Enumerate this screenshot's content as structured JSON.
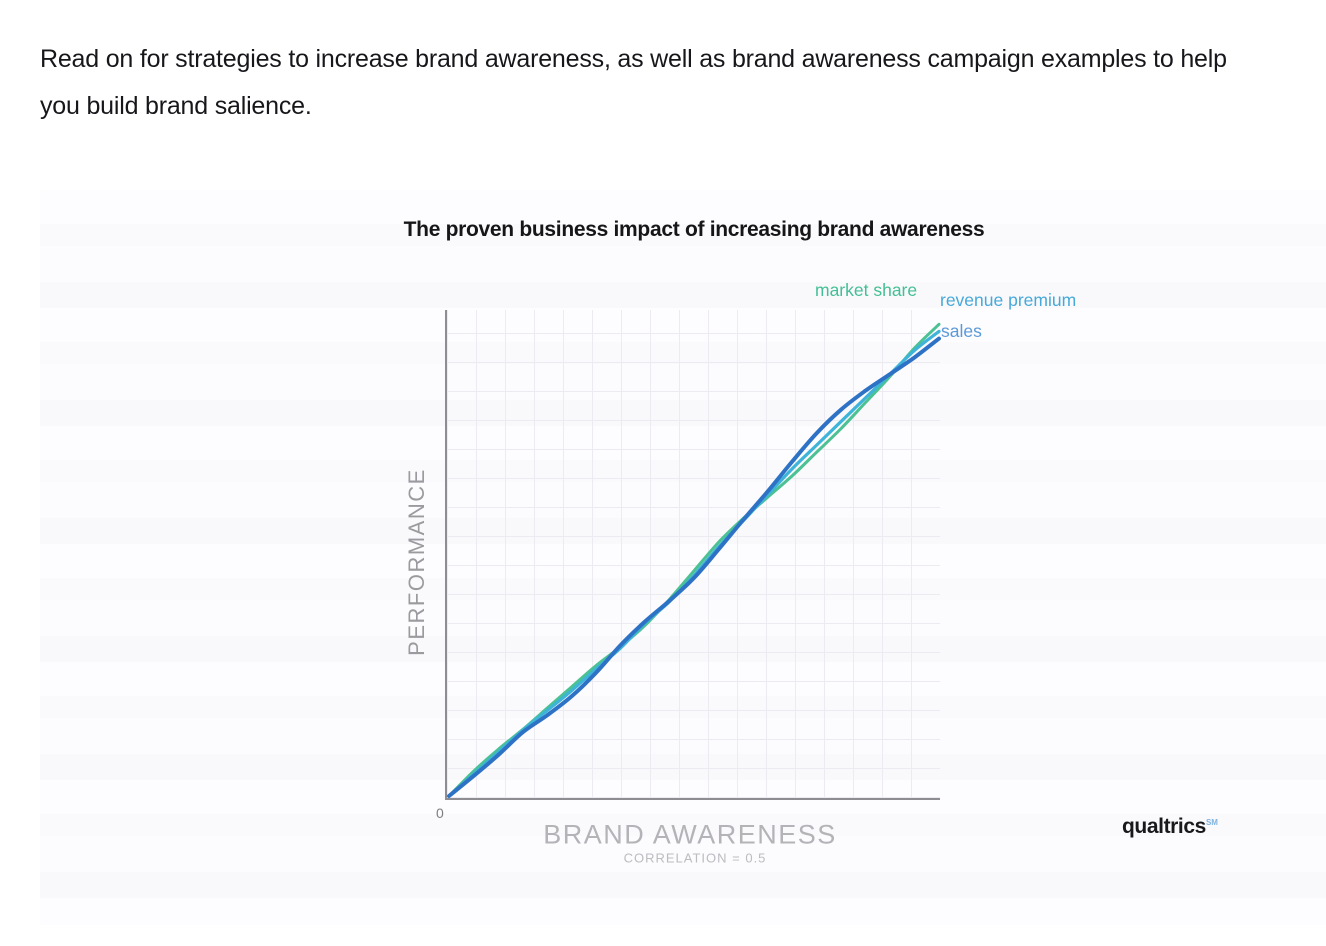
{
  "intro": {
    "text": "Read on for strategies to increase brand awareness, as well as brand awareness campaign examples to help you build brand salience."
  },
  "figure": {
    "title": "The proven business impact of increasing brand awareness",
    "y_axis_label": "PERFORMANCE",
    "x_axis_label": "BRAND AWARENESS",
    "correlation_note": "CORRELATION = 0.5",
    "origin_label": "0",
    "legend": {
      "market_share": "market share",
      "revenue_premium": "revenue premium",
      "sales": "sales"
    },
    "brand": {
      "name": "qualtrics",
      "mark": "SM"
    },
    "colors": {
      "market_share_text": "#44bf93",
      "revenue_premium_text": "#47a9d8",
      "sales_text": "#5b9ad8",
      "brand_mark": "#7fb3e0",
      "axis": "#8e8e92",
      "grid": "#ebebf1"
    }
  },
  "chart_data": {
    "type": "line",
    "title": "The proven business impact of increasing brand awareness",
    "xlabel": "BRAND AWARENESS",
    "ylabel": "PERFORMANCE",
    "annotation": "CORRELATION = 0.5",
    "origin_tick_label": "0",
    "xlim": [
      0,
      100
    ],
    "ylim": [
      0,
      100
    ],
    "grid": true,
    "legend_position": "top-right at line ends",
    "note": "Axes carry no numeric ticks except 0 at origin; values are pixel-estimated on a normalized 0-100 scale. Three near-diagonal wavy lines braid around each other from origin to top right.",
    "x": [
      0,
      5,
      10,
      15,
      20,
      25,
      30,
      35,
      40,
      45,
      50,
      55,
      60,
      65,
      70,
      75,
      80,
      85,
      90,
      95,
      100
    ],
    "series": [
      {
        "name": "market share",
        "color": "#4cc193",
        "stroke_width": 3,
        "values": [
          0,
          5.2,
          9.8,
          14,
          18.5,
          23,
          27.5,
          31.5,
          36,
          41.5,
          47.5,
          53.5,
          58.5,
          63,
          67.5,
          72.5,
          77.5,
          83,
          88.5,
          94.5,
          99.5
        ]
      },
      {
        "name": "revenue premium",
        "color": "#3db4d8",
        "stroke_width": 3.2,
        "values": [
          0,
          4.6,
          9.2,
          13.8,
          18,
          22.2,
          26.8,
          31.2,
          36.5,
          41,
          46.5,
          52.5,
          58,
          63.5,
          69,
          74,
          79,
          84,
          89,
          94,
          98
        ]
      },
      {
        "name": "sales",
        "color": "#2e72c6",
        "stroke_width": 4,
        "values": [
          0,
          4.2,
          8.6,
          13.4,
          17,
          21,
          26,
          31.8,
          36.8,
          41.2,
          46,
          52,
          58.2,
          64.2,
          70.5,
          76.5,
          81.5,
          85.5,
          89,
          92.5,
          96.5
        ]
      }
    ]
  }
}
